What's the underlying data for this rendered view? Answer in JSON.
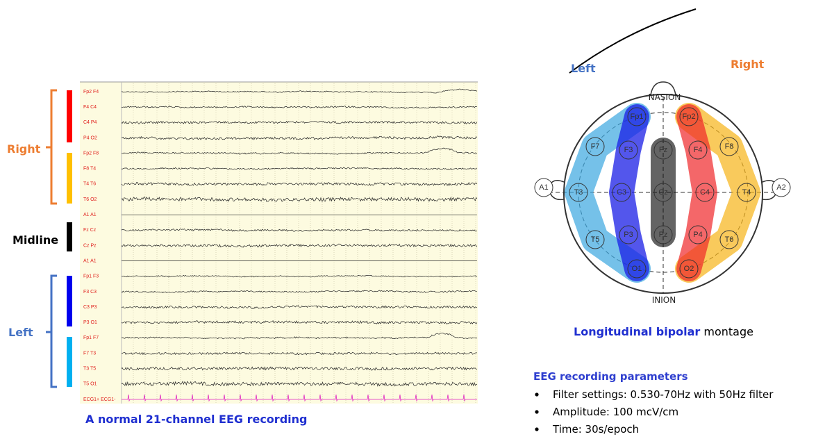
{
  "eeg": {
    "groups": {
      "right": "Right",
      "midline": "Midline",
      "left": "Left"
    },
    "channels": [
      "Fp2 F4",
      "F4 C4",
      "C4 P4",
      "P4 O2",
      "Fp2 F8",
      "F8 T4",
      "T4 T6",
      "T6 O2",
      "A1 A1",
      "Fz Cz",
      "Cz Pz",
      "A1 A1",
      "Fp1 F3",
      "F3 C3",
      "C3 P3",
      "P3 O1",
      "Fp1 F7",
      "F7 T3",
      "T3 T5",
      "T5 O1",
      "ECG1+ ECG1-"
    ],
    "caption": "A normal 21-channel EEG recording"
  },
  "head": {
    "left": "Left",
    "right": "Right",
    "nasion": "NASION",
    "inion": "INION",
    "electrodes": [
      "Fp1",
      "Fp2",
      "F7",
      "F3",
      "Fz",
      "F4",
      "F8",
      "A1",
      "T3",
      "C3",
      "Cz",
      "C4",
      "T4",
      "A2",
      "T5",
      "P3",
      "Pz",
      "P4",
      "T6",
      "O1",
      "O2"
    ]
  },
  "montage": {
    "highlight": "Longitudinal bipolar",
    "rest": "montage"
  },
  "parameters": {
    "title": "EEG recording parameters",
    "items": [
      "Filter settings: 0.530-70Hz with 50Hz filter",
      "Amplitude: 100 mcV/cm",
      "Time: 30s/epoch"
    ]
  }
}
